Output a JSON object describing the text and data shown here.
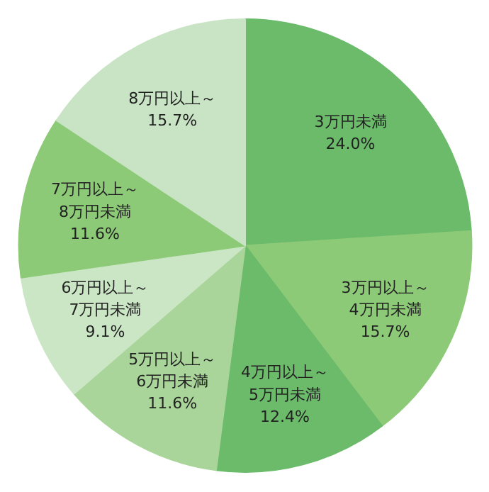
{
  "chart_data": {
    "type": "pie",
    "categories": [
      "3万円未満",
      "3万円以上～\n4万円未満",
      "4万円以上～\n5万円未満",
      "5万円以上～\n6万円未満",
      "6万円以上～\n7万円未満",
      "7万円以上～\n8万円未満",
      "8万円以上～"
    ],
    "values": [
      24.0,
      15.7,
      12.4,
      11.6,
      9.1,
      11.6,
      15.7
    ],
    "value_labels": [
      "24.0%",
      "15.7%",
      "12.4%",
      "11.6%",
      "9.1%",
      "11.6%",
      "15.7%"
    ],
    "colors": [
      "#6bbb6b",
      "#8dca78",
      "#6bbb6b",
      "#a9d59a",
      "#cbe6c5",
      "#8dca78",
      "#c8e4c4"
    ]
  }
}
